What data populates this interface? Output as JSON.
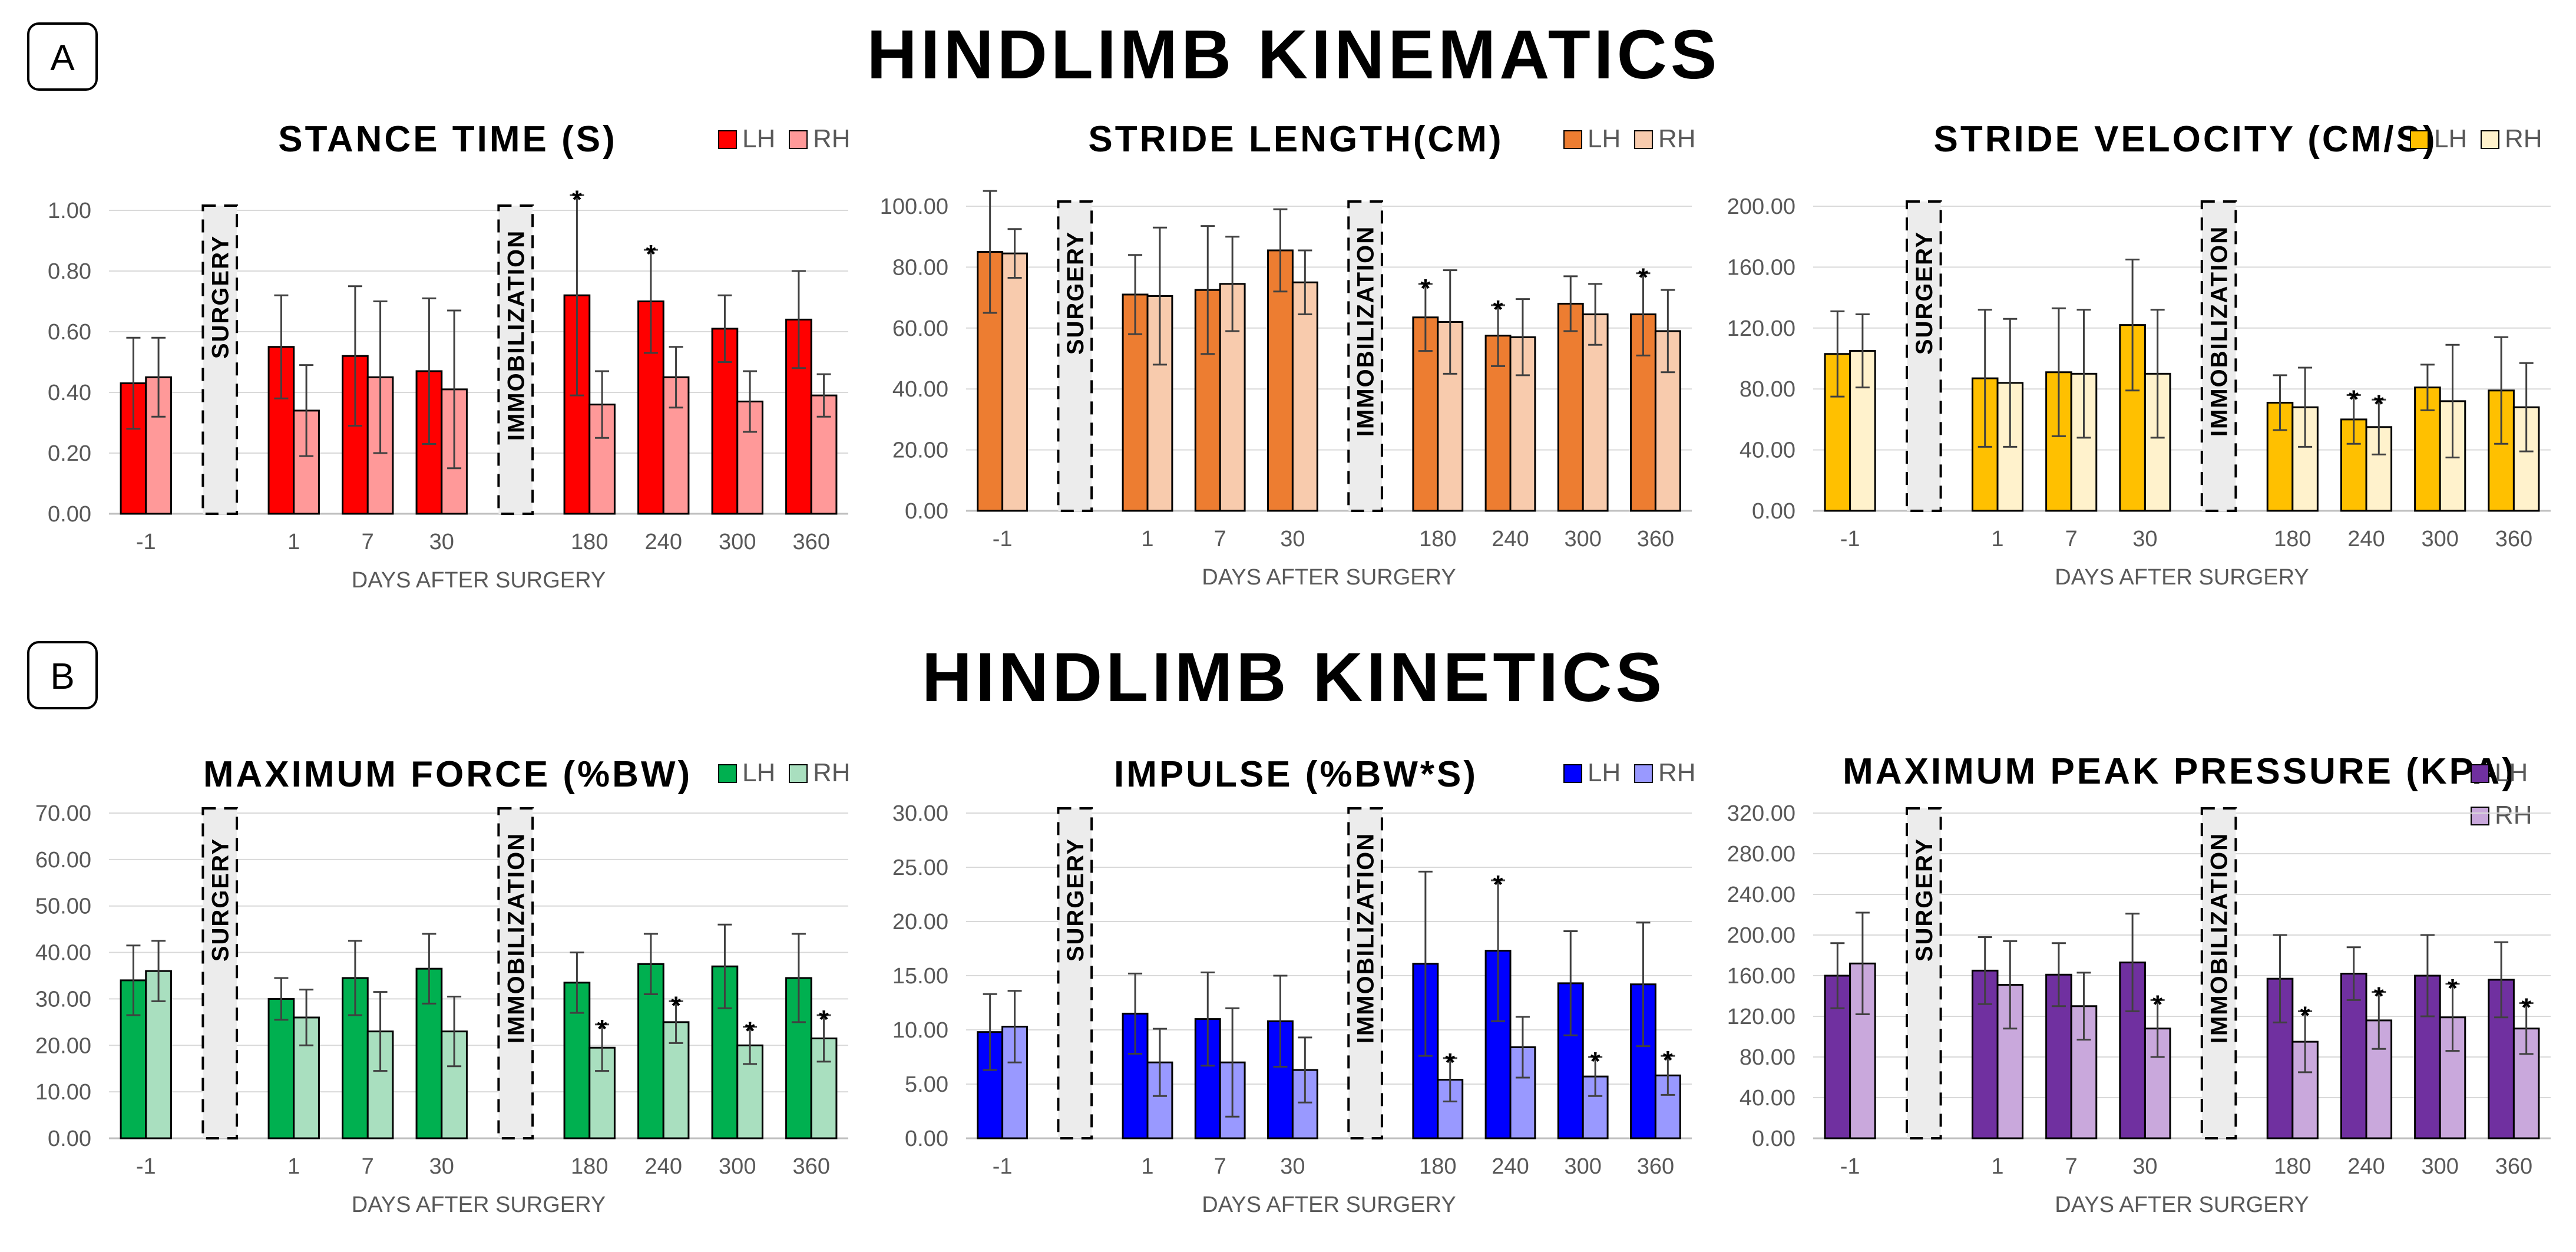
{
  "sections": [
    {
      "letter": "A",
      "title": "HINDLIMB KINEMATICS"
    },
    {
      "letter": "B",
      "title": "HINDLIMB KINETICS"
    }
  ],
  "chart_data": [
    {
      "type": "bar",
      "title": "STANCE TIME (S)",
      "xlabel": "DAYS AFTER SURGERY",
      "ylabel": "",
      "categories": [
        "-1",
        "1",
        "7",
        "30",
        "180",
        "240",
        "300",
        "360"
      ],
      "yticks": [
        "0.00",
        "0.20",
        "0.40",
        "0.60",
        "0.80",
        "1.00"
      ],
      "ylim": [
        0,
        1.0
      ],
      "bands": [
        "SURGERY",
        "IMMOBILIZATION"
      ],
      "series": [
        {
          "name": "LH",
          "color": "#ff0000",
          "values": [
            0.43,
            0.55,
            0.52,
            0.47,
            0.72,
            0.7,
            0.61,
            0.64
          ],
          "errors": [
            0.15,
            0.17,
            0.23,
            0.24,
            0.33,
            0.17,
            0.11,
            0.16
          ],
          "stars": [
            false,
            false,
            false,
            false,
            true,
            true,
            false,
            false
          ]
        },
        {
          "name": "RH",
          "color": "#ff9999",
          "values": [
            0.45,
            0.34,
            0.45,
            0.41,
            0.36,
            0.45,
            0.37,
            0.39
          ],
          "errors": [
            0.13,
            0.15,
            0.25,
            0.26,
            0.11,
            0.1,
            0.1,
            0.07
          ],
          "stars": [
            false,
            false,
            false,
            false,
            false,
            false,
            false,
            false
          ]
        }
      ]
    },
    {
      "type": "bar",
      "title": "STRIDE LENGTH(CM)",
      "xlabel": "DAYS AFTER SURGERY",
      "ylabel": "",
      "categories": [
        "-1",
        "1",
        "7",
        "30",
        "180",
        "240",
        "300",
        "360"
      ],
      "yticks": [
        "0.00",
        "20.00",
        "40.00",
        "60.00",
        "80.00",
        "100.00"
      ],
      "ylim": [
        0,
        100
      ],
      "bands": [
        "SURGERY",
        "IMMOBILIZATION"
      ],
      "series": [
        {
          "name": "LH",
          "color": "#ed7d31",
          "values": [
            85,
            71,
            72.5,
            85.5,
            63.5,
            57.5,
            68,
            64.5
          ],
          "errors": [
            20,
            13,
            21,
            13.5,
            11,
            10,
            9,
            13.5
          ],
          "stars": [
            false,
            false,
            false,
            false,
            true,
            true,
            false,
            true
          ]
        },
        {
          "name": "RH",
          "color": "#f8cbad",
          "values": [
            84.5,
            70.5,
            74.5,
            75,
            62,
            57,
            64.5,
            59
          ],
          "errors": [
            8,
            22.5,
            15.5,
            10.5,
            17,
            12.5,
            10,
            13.5
          ],
          "stars": [
            false,
            false,
            false,
            false,
            false,
            false,
            false,
            false
          ]
        }
      ]
    },
    {
      "type": "bar",
      "title": "STRIDE VELOCITY (CM/S)",
      "xlabel": "DAYS AFTER SURGERY",
      "ylabel": "",
      "categories": [
        "-1",
        "1",
        "7",
        "30",
        "180",
        "240",
        "300",
        "360"
      ],
      "yticks": [
        "0.00",
        "40.00",
        "80.00",
        "120.00",
        "160.00",
        "200.00"
      ],
      "ylim": [
        0,
        200
      ],
      "bands": [
        "SURGERY",
        "IMMOBILIZATION"
      ],
      "series": [
        {
          "name": "LH",
          "color": "#ffc000",
          "values": [
            103,
            87,
            91,
            122,
            71,
            60,
            81,
            79
          ],
          "errors": [
            28,
            45,
            42,
            43,
            18,
            16,
            15,
            35
          ],
          "stars": [
            false,
            false,
            false,
            false,
            false,
            true,
            false,
            false
          ]
        },
        {
          "name": "RH",
          "color": "#fff2cc",
          "values": [
            105,
            84,
            90,
            90,
            68,
            55,
            72,
            68
          ],
          "errors": [
            24,
            42,
            42,
            42,
            26,
            18,
            37,
            29
          ],
          "stars": [
            false,
            false,
            false,
            false,
            false,
            true,
            false,
            false
          ]
        }
      ]
    },
    {
      "type": "bar",
      "title": "MAXIMUM FORCE (%BW)",
      "xlabel": "DAYS AFTER SURGERY",
      "ylabel": "",
      "categories": [
        "-1",
        "1",
        "7",
        "30",
        "180",
        "240",
        "300",
        "360"
      ],
      "yticks": [
        "0.00",
        "10.00",
        "20.00",
        "30.00",
        "40.00",
        "50.00",
        "60.00",
        "70.00"
      ],
      "ylim": [
        0,
        70
      ],
      "bands": [
        "SURGERY",
        "IMMOBILIZATION"
      ],
      "series": [
        {
          "name": "LH",
          "color": "#00b050",
          "values": [
            34,
            30,
            34.5,
            36.5,
            33.5,
            37.5,
            37,
            34.5
          ],
          "errors": [
            7.5,
            4.5,
            8,
            7.5,
            6.5,
            6.5,
            9,
            9.5
          ],
          "stars": [
            false,
            false,
            false,
            false,
            false,
            false,
            false,
            false
          ]
        },
        {
          "name": "RH",
          "color": "#a9dfbf",
          "values": [
            36,
            26,
            23,
            23,
            19.5,
            25,
            20,
            21.5
          ],
          "errors": [
            6.5,
            6,
            8.5,
            7.5,
            5,
            4.5,
            4,
            5
          ],
          "stars": [
            false,
            false,
            false,
            false,
            true,
            true,
            true,
            true
          ]
        }
      ]
    },
    {
      "type": "bar",
      "title": "IMPULSE (%BW*S)",
      "xlabel": "DAYS AFTER SURGERY",
      "ylabel": "",
      "categories": [
        "-1",
        "1",
        "7",
        "30",
        "180",
        "240",
        "300",
        "360"
      ],
      "yticks": [
        "0.00",
        "5.00",
        "10.00",
        "15.00",
        "20.00",
        "25.00",
        "30.00"
      ],
      "ylim": [
        0,
        30
      ],
      "bands": [
        "SURGERY",
        "IMMOBILIZATION"
      ],
      "series": [
        {
          "name": "LH",
          "color": "#0000ff",
          "values": [
            9.8,
            11.5,
            11,
            10.8,
            16.1,
            17.3,
            14.3,
            14.2
          ],
          "errors": [
            3.5,
            3.7,
            4.3,
            4.2,
            8.5,
            6.5,
            4.8,
            5.7
          ],
          "stars": [
            false,
            false,
            false,
            false,
            false,
            true,
            false,
            false
          ]
        },
        {
          "name": "RH",
          "color": "#9999ff",
          "values": [
            10.3,
            7,
            7,
            6.3,
            5.4,
            8.4,
            5.7,
            5.8
          ],
          "errors": [
            3.3,
            3.1,
            5,
            3,
            2,
            2.8,
            1.8,
            1.8
          ],
          "stars": [
            false,
            false,
            false,
            false,
            true,
            false,
            true,
            true
          ]
        }
      ]
    },
    {
      "type": "bar",
      "title": "MAXIMUM PEAK PRESSURE (KPA)",
      "xlabel": "DAYS AFTER SURGERY",
      "ylabel": "",
      "categories": [
        "-1",
        "1",
        "7",
        "30",
        "180",
        "240",
        "300",
        "360"
      ],
      "yticks": [
        "0.00",
        "40.00",
        "80.00",
        "120.00",
        "160.00",
        "200.00",
        "240.00",
        "280.00",
        "320.00"
      ],
      "ylim": [
        0,
        320
      ],
      "bands": [
        "SURGERY",
        "IMMOBILIZATION"
      ],
      "series": [
        {
          "name": "LH",
          "color": "#7030a0",
          "values": [
            160,
            165,
            161,
            173,
            157,
            162,
            160,
            156
          ],
          "errors": [
            32,
            33,
            31,
            48,
            43,
            26,
            40,
            37
          ],
          "stars": [
            false,
            false,
            false,
            false,
            false,
            false,
            false,
            false
          ]
        },
        {
          "name": "RH",
          "color": "#c9a8dc",
          "values": [
            172,
            151,
            130,
            108,
            95,
            116,
            119,
            108
          ],
          "errors": [
            50,
            43,
            33,
            28,
            30,
            28,
            33,
            25
          ],
          "stars": [
            false,
            false,
            false,
            true,
            true,
            true,
            true,
            true
          ]
        }
      ]
    }
  ]
}
